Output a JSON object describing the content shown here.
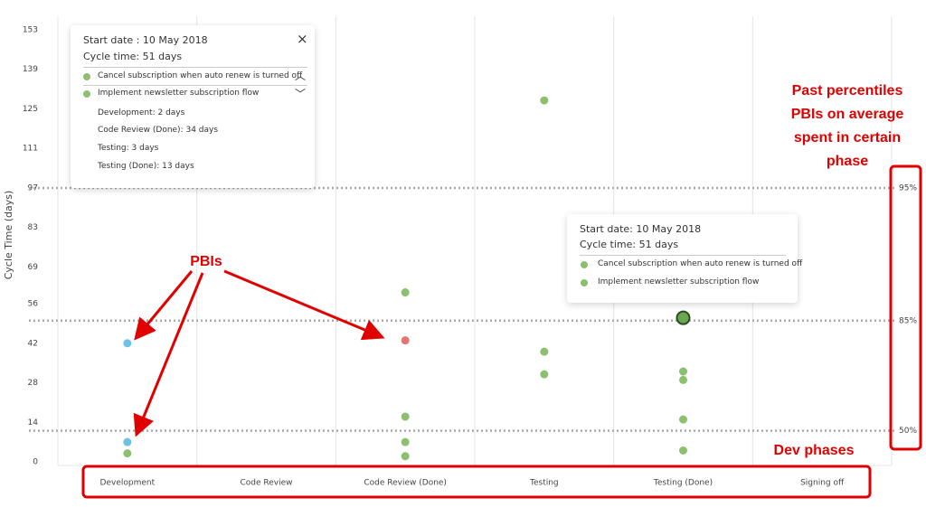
{
  "chart_data": {
    "type": "scatter",
    "y_label": "Cycle Time (days)",
    "categories": [
      "Development",
      "Code Review",
      "Code Review (Done)",
      "Testing",
      "Testing (Done)",
      "Signing off"
    ],
    "ylim": [
      0,
      153
    ],
    "yticks": [
      0,
      14,
      28,
      42,
      56,
      69,
      83,
      97,
      111,
      125,
      139,
      153
    ],
    "points": {
      "x": [
        "Development",
        "Development",
        "Development",
        "Code Review (Done)",
        "Code Review (Done)",
        "Code Review (Done)",
        "Code Review (Done)",
        "Code Review (Done)",
        "Testing",
        "Testing",
        "Testing",
        "Testing (Done)",
        "Testing (Done)",
        "Testing (Done)",
        "Testing (Done)",
        "Testing (Done)"
      ],
      "values": [
        42,
        7,
        3,
        60,
        43,
        16,
        7,
        2,
        128,
        39,
        31,
        51,
        32,
        29,
        15,
        4
      ],
      "colors": [
        "#6ec1e4",
        "#6ec1e4",
        "#8cc06e",
        "#8cc06e",
        "#e57373",
        "#8cc06e",
        "#8cc06e",
        "#8cc06e",
        "#8cc06e",
        "#8cc06e",
        "#8cc06e",
        "#6aa84f",
        "#8cc06e",
        "#8cc06e",
        "#8cc06e",
        "#8cc06e"
      ]
    },
    "highlighted": 11,
    "percentiles": [
      {
        "value": 97,
        "label": "95%"
      },
      {
        "value": 50,
        "label": "85%"
      },
      {
        "value": 11,
        "label": "50%"
      }
    ],
    "tooltip_detail": {
      "start": "Start date : 10 May 2018",
      "cycle": "Cycle time: 51 days",
      "items": [
        "Cancel subscription when auto renew is turned off",
        "Implement newsletter subscription flow"
      ],
      "phases": [
        "Development: 2 days",
        "Code Review (Done): 34 days",
        "Testing: 3 days",
        "Testing (Done): 13 days"
      ]
    },
    "tooltip_hover": {
      "start": "Start date: 10 May 2018",
      "cycle": "Cycle time: 51 days",
      "items": [
        "Cancel subscription when auto renew is turned off",
        "Implement newsletter subscription flow"
      ]
    },
    "annotations": {
      "pbis": "PBIs",
      "percentiles": [
        "Past percentiles",
        "PBIs on average",
        "spent in certain",
        "phase"
      ],
      "phases": "Dev phases"
    }
  }
}
